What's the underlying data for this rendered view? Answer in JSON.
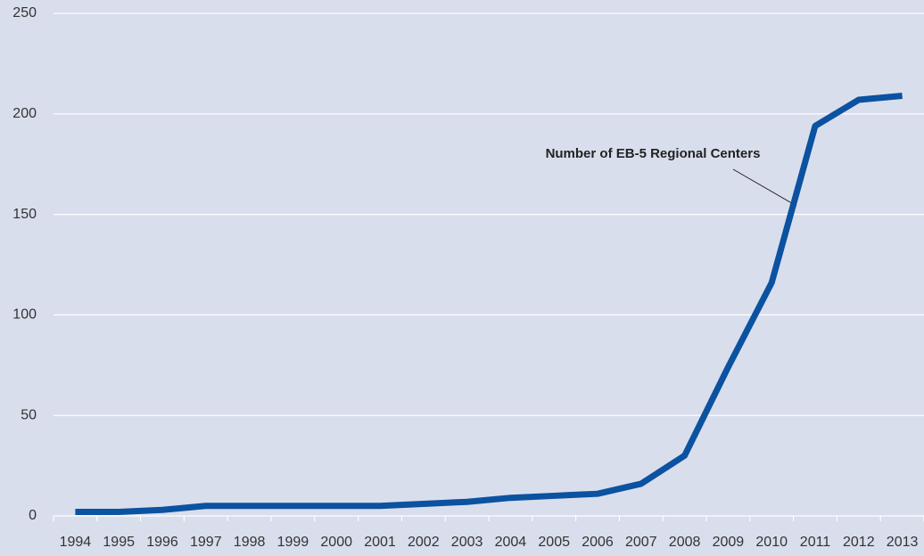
{
  "chart_data": {
    "type": "line",
    "annotation": "Number of EB-5 Regional Centers",
    "categories": [
      "1994",
      "1995",
      "1996",
      "1997",
      "1998",
      "1999",
      "2000",
      "2001",
      "2002",
      "2003",
      "2004",
      "2005",
      "2006",
      "2007",
      "2008",
      "2009",
      "2010",
      "2011",
      "2012",
      "2013"
    ],
    "series": [
      {
        "name": "Number of EB-5 Regional Centers",
        "color": "#0b52a0",
        "values": [
          2,
          2,
          3,
          5,
          5,
          5,
          5,
          5,
          6,
          7,
          9,
          10,
          11,
          16,
          30,
          74,
          116,
          194,
          207,
          209
        ]
      }
    ],
    "ylim": [
      0,
      250
    ],
    "yticks": [
      0,
      50,
      100,
      150,
      200,
      250
    ],
    "grid": true
  }
}
